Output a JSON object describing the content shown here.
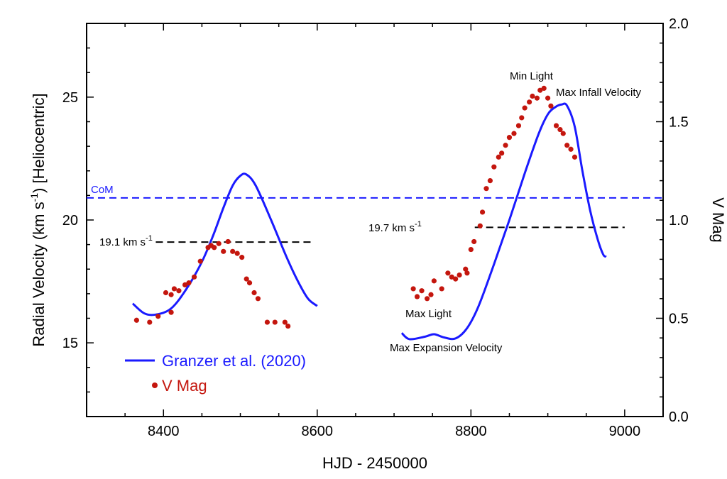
{
  "colors": {
    "model": "#1a1aff",
    "vmag": "#c4160e",
    "ref": "#000000",
    "axis": "#000000"
  },
  "chart_data": {
    "type": "line",
    "xlabel": "HJD - 2450000",
    "ylabel": "Radial Velocity (km s",
    "ylabel_sup": "-1",
    "ylabel_tail": ") [Heliocentric]",
    "y2label": "V Mag",
    "xlim": [
      8300,
      9050
    ],
    "ylim": [
      12,
      28
    ],
    "y2lim": [
      0,
      2
    ],
    "xticks": [
      8400,
      8600,
      8800,
      9000
    ],
    "yticks": [
      15,
      20,
      25
    ],
    "y2ticks": [
      0.0,
      0.5,
      1.0,
      1.5,
      2.0
    ],
    "xtick_labels": [
      "8400",
      "8600",
      "8800",
      "9000"
    ],
    "ytick_labels": [
      "15",
      "20",
      "25"
    ],
    "y2tick_labels": [
      "0.0",
      "0.5",
      "1.0",
      "1.5",
      "2.0"
    ],
    "legend": {
      "position": "bottom-left",
      "model_label": "Granzer et al. (2020)",
      "vmag_label": "V Mag"
    },
    "com": {
      "label": "CoM",
      "y": 20.9
    },
    "reference_lines": [
      {
        "label": "19.1 km s",
        "sup": "-1",
        "y": 19.1,
        "x0": 8390,
        "x1": 8595
      },
      {
        "label": "19.7 km s",
        "sup": "-1",
        "y": 19.7,
        "x0": 8805,
        "x1": 9000
      }
    ],
    "annotations": {
      "min_light": "Min Light",
      "max_infall": "Max Infall Velocity",
      "max_light": "Max Light",
      "max_expansion": "Max Expansion Velocity"
    },
    "series": [
      {
        "name": "Granzer et al. (2020)",
        "kind": "line",
        "axis": "left",
        "segments": [
          [
            [
              8360,
              16.6
            ],
            [
              8375,
              16.2
            ],
            [
              8390,
              16.15
            ],
            [
              8410,
              16.4
            ],
            [
              8430,
              17.2
            ],
            [
              8450,
              18.3
            ],
            [
              8465,
              19.4
            ],
            [
              8478,
              20.5
            ],
            [
              8490,
              21.4
            ],
            [
              8500,
              21.8
            ],
            [
              8508,
              21.85
            ],
            [
              8520,
              21.4
            ],
            [
              8540,
              20.0
            ],
            [
              8560,
              18.5
            ],
            [
              8575,
              17.5
            ],
            [
              8588,
              16.8
            ],
            [
              8600,
              16.5
            ]
          ],
          [
            [
              8710,
              15.4
            ],
            [
              8720,
              15.15
            ],
            [
              8740,
              15.25
            ],
            [
              8752,
              15.35
            ],
            [
              8765,
              15.22
            ],
            [
              8780,
              15.18
            ],
            [
              8795,
              15.6
            ],
            [
              8810,
              16.5
            ],
            [
              8830,
              18.2
            ],
            [
              8850,
              20.0
            ],
            [
              8870,
              21.9
            ],
            [
              8888,
              23.5
            ],
            [
              8900,
              24.3
            ],
            [
              8910,
              24.6
            ],
            [
              8918,
              24.7
            ],
            [
              8925,
              24.65
            ],
            [
              8935,
              23.8
            ],
            [
              8945,
              22.0
            ],
            [
              8955,
              20.4
            ],
            [
              8965,
              19.2
            ],
            [
              8972,
              18.6
            ],
            [
              8976,
              18.5
            ]
          ]
        ]
      },
      {
        "name": "V Mag",
        "kind": "scatter",
        "axis": "right",
        "points": [
          [
            8365,
            0.49
          ],
          [
            8382,
            0.48
          ],
          [
            8393,
            0.51
          ],
          [
            8403,
            0.63
          ],
          [
            8410,
            0.53
          ],
          [
            8410,
            0.62
          ],
          [
            8414,
            0.65
          ],
          [
            8420,
            0.64
          ],
          [
            8428,
            0.67
          ],
          [
            8433,
            0.68
          ],
          [
            8440,
            0.71
          ],
          [
            8448,
            0.79
          ],
          [
            8458,
            0.86
          ],
          [
            8462,
            0.87
          ],
          [
            8466,
            0.86
          ],
          [
            8472,
            0.88
          ],
          [
            8478,
            0.84
          ],
          [
            8484,
            0.89
          ],
          [
            8490,
            0.84
          ],
          [
            8496,
            0.83
          ],
          [
            8502,
            0.81
          ],
          [
            8508,
            0.7
          ],
          [
            8512,
            0.68
          ],
          [
            8518,
            0.63
          ],
          [
            8523,
            0.6
          ],
          [
            8535,
            0.48
          ],
          [
            8545,
            0.48
          ],
          [
            8558,
            0.48
          ],
          [
            8562,
            0.46
          ],
          [
            8725,
            0.65
          ],
          [
            8730,
            0.61
          ],
          [
            8736,
            0.64
          ],
          [
            8743,
            0.6
          ],
          [
            8748,
            0.62
          ],
          [
            8752,
            0.69
          ],
          [
            8762,
            0.65
          ],
          [
            8770,
            0.73
          ],
          [
            8775,
            0.71
          ],
          [
            8780,
            0.7
          ],
          [
            8785,
            0.72
          ],
          [
            8793,
            0.75
          ],
          [
            8795,
            0.73
          ],
          [
            8800,
            0.85
          ],
          [
            8804,
            0.89
          ],
          [
            8812,
            0.97
          ],
          [
            8815,
            1.04
          ],
          [
            8820,
            1.16
          ],
          [
            8825,
            1.2
          ],
          [
            8830,
            1.27
          ],
          [
            8836,
            1.32
          ],
          [
            8840,
            1.34
          ],
          [
            8845,
            1.38
          ],
          [
            8850,
            1.42
          ],
          [
            8856,
            1.44
          ],
          [
            8862,
            1.48
          ],
          [
            8866,
            1.52
          ],
          [
            8870,
            1.57
          ],
          [
            8876,
            1.6
          ],
          [
            8880,
            1.63
          ],
          [
            8886,
            1.62
          ],
          [
            8890,
            1.66
          ],
          [
            8895,
            1.67
          ],
          [
            8900,
            1.62
          ],
          [
            8904,
            1.58
          ],
          [
            8911,
            1.48
          ],
          [
            8916,
            1.46
          ],
          [
            8920,
            1.44
          ],
          [
            8925,
            1.38
          ],
          [
            8930,
            1.36
          ],
          [
            8935,
            1.32
          ]
        ]
      }
    ]
  }
}
